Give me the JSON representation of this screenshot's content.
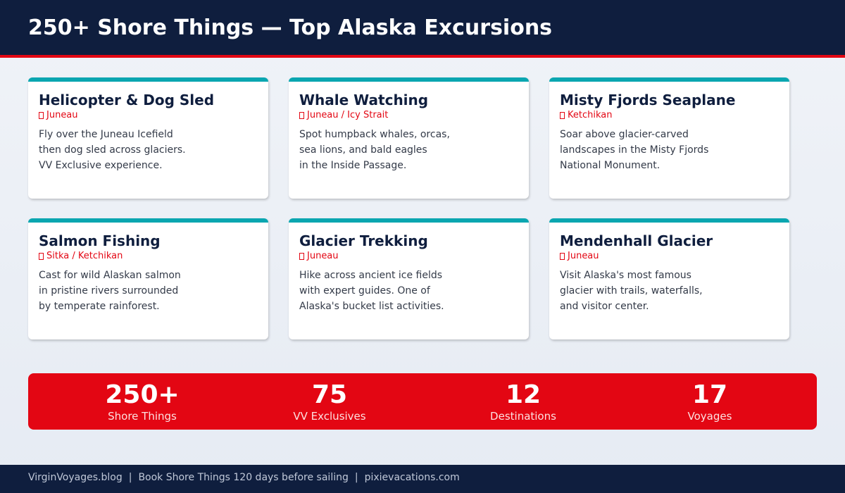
{
  "header": {
    "title": "250+ Shore Things — Top Alaska Excursions"
  },
  "cards": [
    {
      "title": "Helicopter & Dog Sled",
      "location": "Juneau",
      "lines": [
        "Fly over the Juneau Icefield",
        "then dog sled across glaciers.",
        "VV Exclusive experience."
      ]
    },
    {
      "title": "Whale Watching",
      "location": "Juneau / Icy Strait",
      "lines": [
        "Spot humpback whales, orcas,",
        "sea lions, and bald eagles",
        "in the Inside Passage."
      ]
    },
    {
      "title": "Misty Fjords Seaplane",
      "location": "Ketchikan",
      "lines": [
        "Soar above glacier-carved",
        "landscapes in the Misty Fjords",
        "National Monument."
      ]
    },
    {
      "title": "Salmon Fishing",
      "location": "Sitka / Ketchikan",
      "lines": [
        "Cast for wild Alaskan salmon",
        "in pristine rivers surrounded",
        "by temperate rainforest."
      ]
    },
    {
      "title": "Glacier Trekking",
      "location": "Juneau",
      "lines": [
        "Hike across ancient ice fields",
        "with expert guides. One of",
        "Alaska's bucket list activities."
      ]
    },
    {
      "title": "Mendenhall Glacier",
      "location": "Juneau",
      "lines": [
        "Visit Alaska's most famous",
        "glacier with trails, waterfalls,",
        "and visitor center."
      ]
    }
  ],
  "stats": [
    {
      "value": "250+",
      "label": "Shore Things"
    },
    {
      "value": 75,
      "label": "VV Exclusives"
    },
    {
      "value": 12,
      "label": "Destinations"
    },
    {
      "value": 17,
      "label": "Voyages"
    }
  ],
  "footer": {
    "items": [
      "VirginVoyages.blog",
      "Book Shore Things 120 days before sailing",
      "pixievacations.com"
    ]
  }
}
